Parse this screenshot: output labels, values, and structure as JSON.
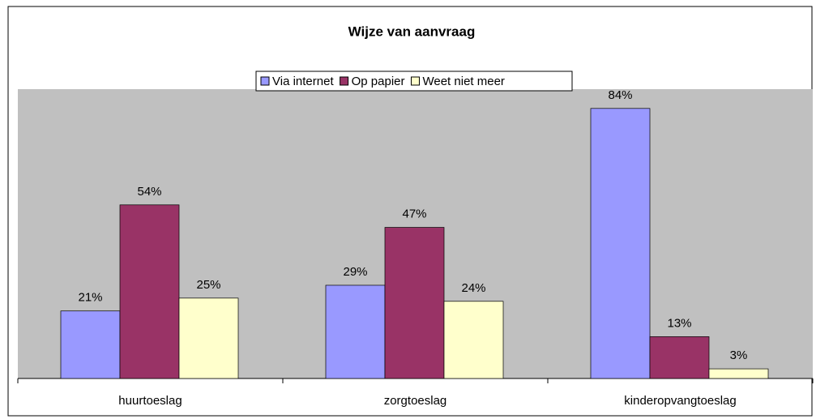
{
  "chart_data": {
    "type": "bar",
    "title": "Wijze van aanvraag",
    "categories": [
      "huurtoeslag",
      "zorgtoeslag",
      "kinderopvangtoeslag"
    ],
    "series": [
      {
        "name": "Via internet",
        "color": "#9999ff",
        "values": [
          21,
          29,
          84
        ],
        "value_labels": [
          "21%",
          "29%",
          "84%"
        ]
      },
      {
        "name": "Op papier",
        "color": "#993366",
        "values": [
          54,
          47,
          13
        ],
        "value_labels": [
          "54%",
          "47%",
          "13%"
        ]
      },
      {
        "name": "Weet niet meer",
        "color": "#ffffcc",
        "values": [
          25,
          24,
          3
        ],
        "value_labels": [
          "25%",
          "24%",
          "3%"
        ]
      }
    ],
    "ylim": [
      0,
      90
    ],
    "grid": false,
    "legend": "top"
  }
}
